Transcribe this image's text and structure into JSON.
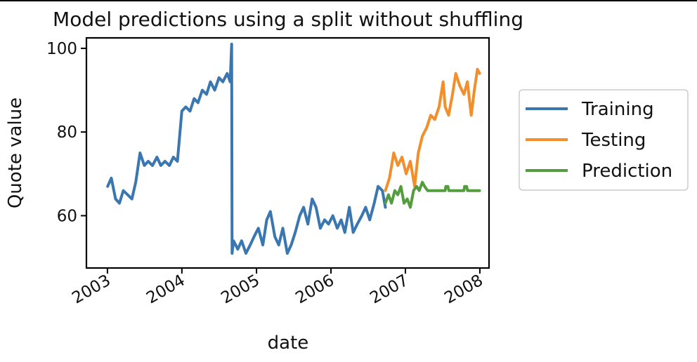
{
  "chart_data": {
    "type": "line",
    "title": "Model predictions using a split without shuffling",
    "xlabel": "date",
    "ylabel": "Quote value",
    "xlim": [
      "2002-09-20",
      "2008-02-15"
    ],
    "ylim": [
      47.5,
      102.5
    ],
    "x_ticks": [
      "2003",
      "2004",
      "2005",
      "2006",
      "2007",
      "2008"
    ],
    "y_ticks": [
      60,
      80,
      100
    ],
    "grid": false,
    "legend_position": "outside-right",
    "series": [
      {
        "name": "Training",
        "color": "#3a76b0",
        "x": [
          "2003-01-02",
          "2003-01-20",
          "2003-02-10",
          "2003-03-01",
          "2003-03-20",
          "2003-04-10",
          "2003-05-01",
          "2003-05-20",
          "2003-06-10",
          "2003-07-01",
          "2003-07-20",
          "2003-08-10",
          "2003-09-01",
          "2003-09-20",
          "2003-10-10",
          "2003-11-01",
          "2003-11-20",
          "2003-12-10",
          "2004-01-01",
          "2004-01-20",
          "2004-02-10",
          "2004-03-01",
          "2004-03-20",
          "2004-04-10",
          "2004-05-01",
          "2004-05-20",
          "2004-06-10",
          "2004-07-01",
          "2004-07-20",
          "2004-08-10",
          "2004-08-25",
          "2004-09-01",
          "2004-09-03",
          "2004-09-10",
          "2004-10-01",
          "2004-10-20",
          "2004-11-10",
          "2004-12-01",
          "2004-12-20",
          "2005-01-10",
          "2005-02-01",
          "2005-02-20",
          "2005-03-10",
          "2005-04-01",
          "2005-04-20",
          "2005-05-10",
          "2005-06-01",
          "2005-06-20",
          "2005-07-10",
          "2005-08-01",
          "2005-08-20",
          "2005-09-10",
          "2005-10-01",
          "2005-10-20",
          "2005-11-10",
          "2005-12-01",
          "2005-12-20",
          "2006-01-10",
          "2006-02-01",
          "2006-02-20",
          "2006-03-10",
          "2006-04-01",
          "2006-04-20",
          "2006-05-10",
          "2006-06-01",
          "2006-06-20",
          "2006-07-10",
          "2006-08-01",
          "2006-08-20",
          "2006-09-10",
          "2006-09-25"
        ],
        "y": [
          67,
          69,
          64,
          63,
          66,
          65,
          64,
          68,
          75,
          72,
          73,
          72,
          74,
          72,
          73,
          72,
          74,
          73,
          85,
          86,
          85,
          88,
          87,
          90,
          89,
          92,
          90,
          93,
          92,
          94,
          92,
          101,
          51,
          54,
          52,
          54,
          51,
          53,
          55,
          57,
          53,
          59,
          61,
          55,
          53,
          57,
          51,
          53,
          56,
          60,
          62,
          58,
          64,
          62,
          57,
          59,
          58,
          60,
          57,
          59,
          56,
          62,
          56,
          58,
          60,
          62,
          59,
          63,
          67,
          66,
          62
        ]
      },
      {
        "name": "Testing",
        "color": "#f28e2b",
        "x": [
          "2006-09-25",
          "2006-10-15",
          "2006-11-05",
          "2006-11-25",
          "2006-12-15",
          "2007-01-05",
          "2007-01-25",
          "2007-02-15",
          "2007-03-05",
          "2007-03-25",
          "2007-04-15",
          "2007-05-05",
          "2007-05-25",
          "2007-06-15",
          "2007-07-05",
          "2007-07-15",
          "2007-08-01",
          "2007-08-20",
          "2007-09-05",
          "2007-09-25",
          "2007-10-15",
          "2007-11-01",
          "2007-11-20",
          "2007-12-05",
          "2007-12-20",
          "2007-12-31"
        ],
        "y": [
          66,
          69,
          75,
          72,
          74,
          70,
          73,
          67,
          75,
          79,
          81,
          84,
          83,
          86,
          92,
          86,
          84,
          89,
          94,
          91,
          89,
          92,
          84,
          90,
          95,
          94
        ]
      },
      {
        "name": "Prediction",
        "color": "#559c3f",
        "x": [
          "2006-09-25",
          "2006-10-10",
          "2006-10-25",
          "2006-11-10",
          "2006-11-25",
          "2006-12-10",
          "2006-12-25",
          "2007-01-10",
          "2007-01-25",
          "2007-02-10",
          "2007-02-25",
          "2007-03-10",
          "2007-03-25",
          "2007-04-05",
          "2007-04-20",
          "2007-05-15",
          "2007-06-15",
          "2007-07-15",
          "2007-07-18",
          "2007-07-28",
          "2007-08-02",
          "2007-09-15",
          "2007-10-15",
          "2007-10-18",
          "2007-10-28",
          "2007-11-02",
          "2007-12-31"
        ],
        "y": [
          63,
          65,
          63,
          66,
          65,
          67,
          63,
          64,
          62,
          66,
          67,
          66,
          68,
          67,
          66,
          66,
          66,
          66,
          67,
          67,
          66,
          66,
          66,
          67,
          67,
          66,
          66
        ]
      }
    ]
  }
}
